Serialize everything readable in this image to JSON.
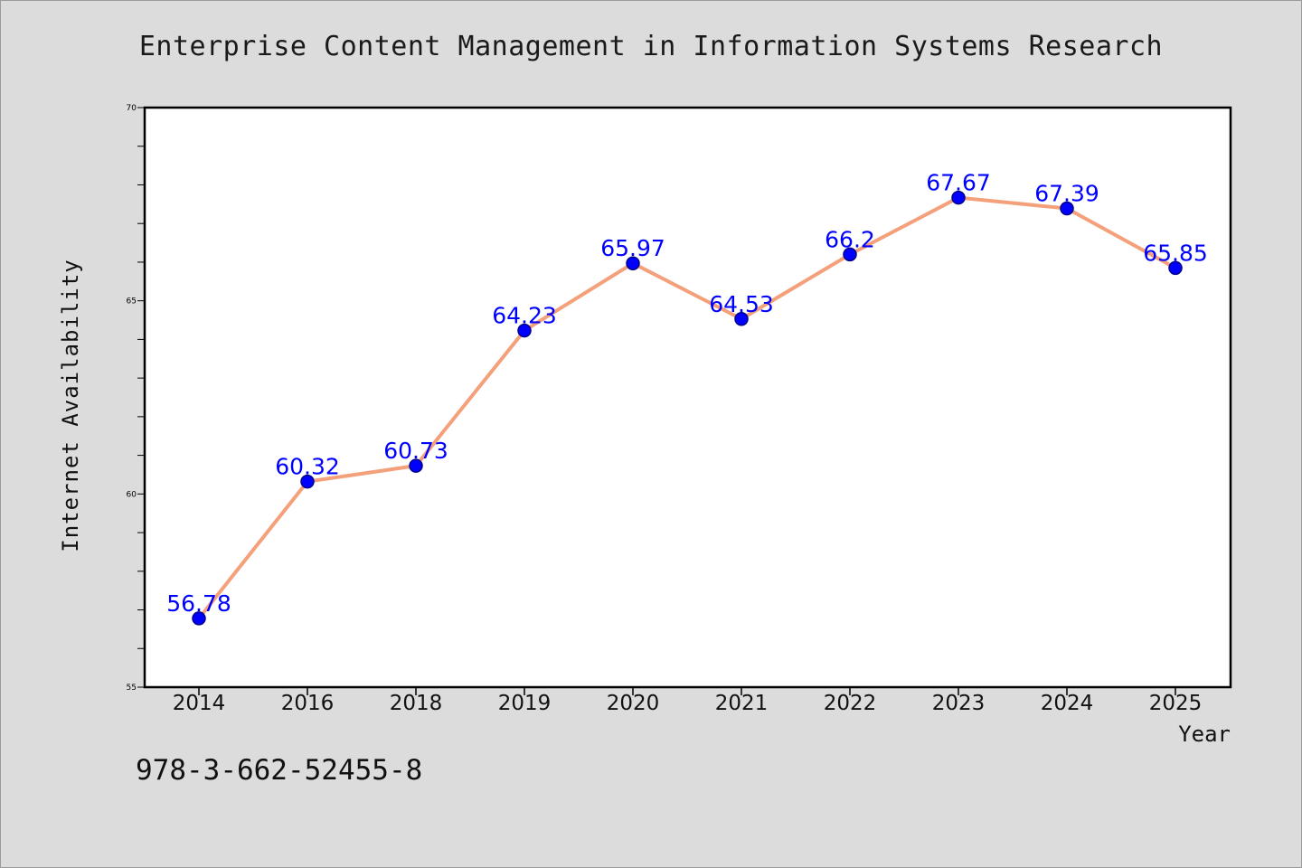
{
  "colors": {
    "page_background": "#dcdcdc",
    "plot_background": "#ffffff",
    "line": "#f4a07a",
    "marker": "#0000ff",
    "marker_edge": "#00008b",
    "data_label": "#0000ff",
    "axis": "#000000"
  },
  "chart_data": {
    "type": "line",
    "title": "Enterprise Content Management in Information Systems Research",
    "xlabel": "Year",
    "ylabel": "Internet Availability",
    "categories": [
      "2014",
      "2016",
      "2018",
      "2019",
      "2020",
      "2021",
      "2022",
      "2023",
      "2024",
      "2025"
    ],
    "series": [
      {
        "values": [
          56.78,
          60.32,
          60.73,
          64.23,
          65.97,
          64.53,
          66.2,
          67.67,
          67.39,
          65.85
        ],
        "labels": [
          "56.78",
          "60.32",
          "60.73",
          "64.23",
          "65.97",
          "64.53",
          "66.2",
          "67.67",
          "67.39",
          "65.85"
        ]
      }
    ],
    "ylim": [
      55,
      70
    ],
    "yticks": [
      55,
      60,
      65,
      70
    ],
    "grid": false,
    "legend": "none"
  },
  "footer": {
    "isbn": "978-3-662-52455-8"
  }
}
